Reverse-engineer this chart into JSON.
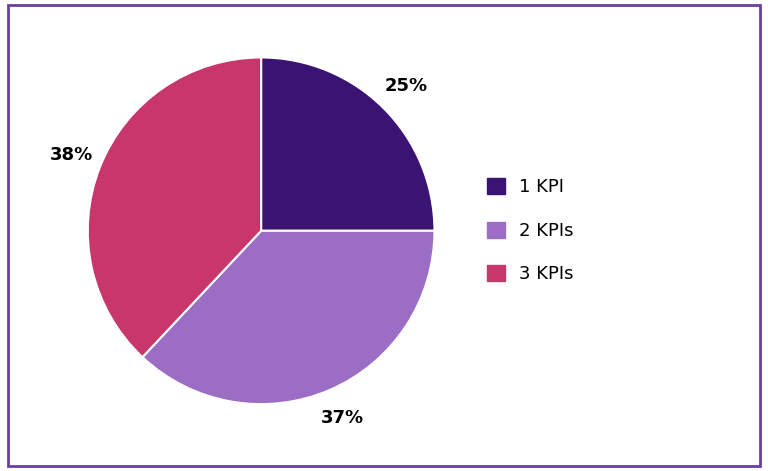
{
  "labels": [
    "1 KPI",
    "2 KPIs",
    "3 KPIs"
  ],
  "values": [
    25,
    37,
    38
  ],
  "colors": [
    "#3B1473",
    "#9B6DC5",
    "#C8366B"
  ],
  "legend_labels": [
    "1 KPI",
    "2 KPIs",
    "3 KPIs"
  ],
  "background_color": "#ffffff",
  "border_color": "#6B3FA0",
  "startangle": 90,
  "label_fontsize": 13,
  "legend_fontsize": 13,
  "pct_distance": 1.18
}
